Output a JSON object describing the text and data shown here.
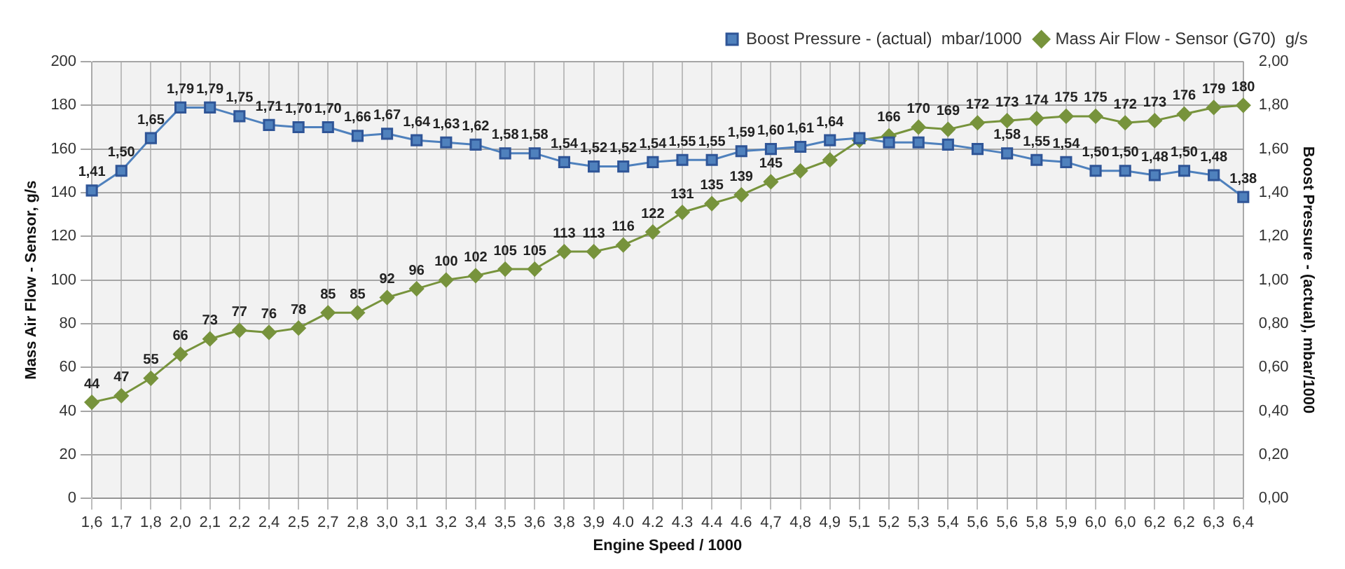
{
  "chart_data": {
    "type": "line",
    "categories": [
      "1,6",
      "1,7",
      "1,8",
      "2,0",
      "2,1",
      "2,2",
      "2,4",
      "2,5",
      "2,7",
      "2,8",
      "3,0",
      "3,1",
      "3,2",
      "3,4",
      "3,5",
      "3,6",
      "3,8",
      "3,9",
      "4.0",
      "4.2",
      "4.3",
      "4.4",
      "4.6",
      "4,7",
      "4,8",
      "4,9",
      "5,1",
      "5,2",
      "5,3",
      "5,4",
      "5,6",
      "5,6",
      "5,8",
      "5,9",
      "6,0",
      "6,0",
      "6,2",
      "6,2",
      "6,3",
      "6,4"
    ],
    "xlabel": "Engine Speed / 1000",
    "ylabel": "Mass Air Flow - Sensor, g/s",
    "y2label": "Boost Pressure - (actual), mbar/1000",
    "ylim": [
      0,
      200
    ],
    "yticks": [
      0,
      20,
      40,
      60,
      80,
      100,
      120,
      140,
      160,
      180,
      200
    ],
    "y2lim": [
      0,
      2
    ],
    "y2ticks": [
      {
        "value": 0,
        "label": "0,00"
      },
      {
        "value": 0.2,
        "label": "0,20"
      },
      {
        "value": 0.4,
        "label": "0,40"
      },
      {
        "value": 0.6,
        "label": "0,60"
      },
      {
        "value": 0.8,
        "label": "0,80"
      },
      {
        "value": 1,
        "label": "1,00"
      },
      {
        "value": 1.2,
        "label": "1,20"
      },
      {
        "value": 1.4,
        "label": "1,40"
      },
      {
        "value": 1.6,
        "label": "1,60"
      },
      {
        "value": 1.8,
        "label": "1,80"
      },
      {
        "value": 2,
        "label": "2,00"
      }
    ],
    "grid": true,
    "legend": "top right",
    "line_style": "solid",
    "series": [
      {
        "name": "Mass Air Flow - Sensor (G70)  g/s",
        "color": "#77933c",
        "marker": "diamond",
        "values": [
          44,
          47,
          55,
          66,
          73,
          77,
          76,
          78,
          85,
          85,
          92,
          96,
          100,
          102,
          105,
          105,
          113,
          113,
          116,
          122,
          131,
          135,
          139,
          145,
          150,
          155,
          164,
          166,
          170,
          169,
          172,
          173,
          174,
          175,
          175,
          172,
          173,
          176,
          179,
          180
        ],
        "value_labels": [
          "44",
          "47",
          "55",
          "66",
          "73",
          "77",
          "76",
          "78",
          "85",
          "85",
          "92",
          "96",
          "100",
          "102",
          "105",
          "105",
          "113",
          "113",
          "116",
          "122",
          "131",
          "135",
          "139",
          "145",
          null,
          null,
          null,
          "166",
          "170",
          "169",
          "172",
          "173",
          "174",
          "175",
          "175",
          "172",
          "173",
          "176",
          "179",
          "180"
        ]
      },
      {
        "name": "Boost Pressure - (actual)  mbar/1000",
        "color": "#4f81bd",
        "marker": "square",
        "axis": "y2",
        "values": [
          1.41,
          1.5,
          1.65,
          1.79,
          1.79,
          1.75,
          1.71,
          1.7,
          1.7,
          1.66,
          1.67,
          1.64,
          1.63,
          1.62,
          1.58,
          1.58,
          1.54,
          1.52,
          1.52,
          1.54,
          1.55,
          1.55,
          1.59,
          1.6,
          1.61,
          1.64,
          1.65,
          1.63,
          1.63,
          1.62,
          1.6,
          1.58,
          1.55,
          1.54,
          1.5,
          1.5,
          1.48,
          1.5,
          1.48,
          1.38
        ],
        "value_labels": [
          "1,41",
          "1,50",
          "1,65",
          "1,79",
          "1,79",
          "1,75",
          "1,71",
          "1,70",
          "1,70",
          "1,66",
          "1,67",
          "1,64",
          "1,63",
          "1,62",
          "1,58",
          "1,58",
          "1,54",
          "1,52",
          "1,52",
          "1,54",
          "1,55",
          "1,55",
          "1,59",
          "1,60",
          "1,61",
          "1,64",
          null,
          null,
          null,
          null,
          null,
          "1,58",
          "1,55",
          "1,54",
          "1,50",
          "1,50",
          "1,48",
          "1,50",
          "1,48",
          "1,38"
        ]
      }
    ]
  }
}
